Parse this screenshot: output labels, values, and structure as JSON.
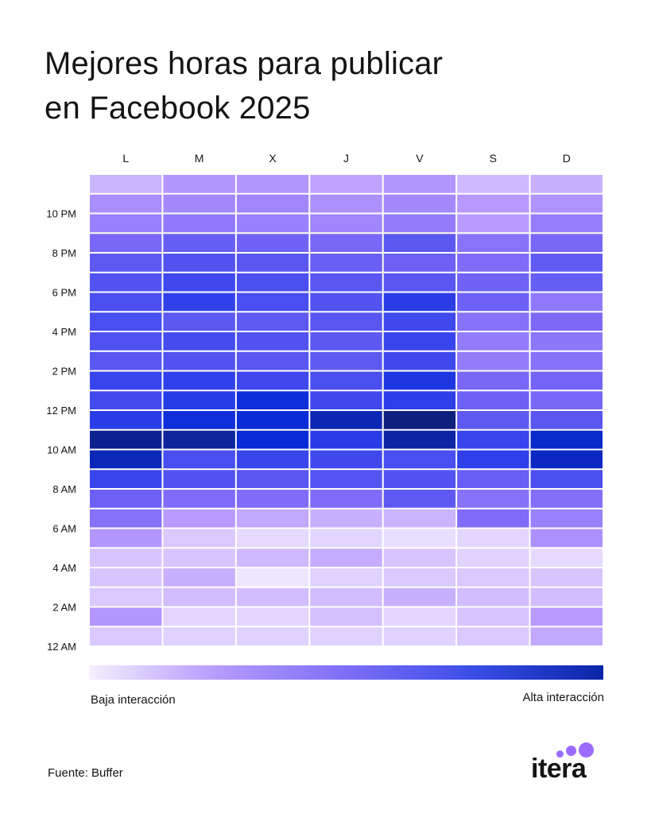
{
  "title": {
    "line1": "Mejores horas para publicar",
    "line2": "en Facebook 2025"
  },
  "chart_data": {
    "type": "heatmap",
    "title": "Mejores horas para publicar en Facebook 2025",
    "x_categories": [
      "L",
      "M",
      "X",
      "J",
      "V",
      "S",
      "D"
    ],
    "y_tick_labels": [
      "10 PM",
      "8 PM",
      "6 PM",
      "4 PM",
      "2 PM",
      "12 PM",
      "10 AM",
      "8 AM",
      "6 AM",
      "4 AM",
      "2 AM",
      "12 AM"
    ],
    "value_scale": "0 = baja interacción, 100 = alta interacción",
    "rows": [
      {
        "hour": "11 PM",
        "values": [
          14,
          22,
          22,
          18,
          22,
          13,
          15
        ]
      },
      {
        "hour": "10 PM",
        "values": [
          25,
          27,
          28,
          24,
          27,
          21,
          23
        ]
      },
      {
        "hour": "9 PM",
        "values": [
          30,
          33,
          30,
          28,
          32,
          20,
          31
        ]
      },
      {
        "hour": "8 PM",
        "values": [
          40,
          46,
          43,
          40,
          49,
          35,
          40
        ]
      },
      {
        "hour": "7 PM",
        "values": [
          48,
          52,
          50,
          45,
          44,
          38,
          47
        ]
      },
      {
        "hour": "6 PM",
        "values": [
          52,
          58,
          54,
          50,
          50,
          43,
          46
        ]
      },
      {
        "hour": "5 PM",
        "values": [
          54,
          63,
          55,
          52,
          66,
          44,
          33
        ]
      },
      {
        "hour": "4 PM",
        "values": [
          55,
          49,
          48,
          50,
          58,
          36,
          39
        ]
      },
      {
        "hour": "3 PM",
        "values": [
          53,
          56,
          52,
          49,
          60,
          32,
          34
        ]
      },
      {
        "hour": "2 PM",
        "values": [
          50,
          52,
          50,
          48,
          58,
          32,
          36
        ]
      },
      {
        "hour": "1 PM",
        "values": [
          60,
          63,
          58,
          54,
          71,
          40,
          42
        ]
      },
      {
        "hour": "12 PM",
        "values": [
          57,
          67,
          78,
          58,
          65,
          44,
          40
        ]
      },
      {
        "hour": "11 AM",
        "values": [
          66,
          78,
          80,
          87,
          98,
          48,
          50
        ]
      },
      {
        "hour": "10 AM",
        "values": [
          94,
          92,
          80,
          66,
          90,
          60,
          82
        ]
      },
      {
        "hour": "9 AM",
        "values": [
          86,
          55,
          60,
          58,
          55,
          64,
          84
        ]
      },
      {
        "hour": "8 AM",
        "values": [
          60,
          52,
          50,
          51,
          52,
          45,
          54
        ]
      },
      {
        "hour": "7 AM",
        "values": [
          44,
          38,
          38,
          38,
          48,
          36,
          37
        ]
      },
      {
        "hour": "6 AM",
        "values": [
          36,
          20,
          17,
          15,
          14,
          38,
          30
        ]
      },
      {
        "hour": "5 AM",
        "values": [
          22,
          9,
          5,
          6,
          4,
          6,
          24
        ]
      },
      {
        "hour": "4 AM",
        "values": [
          10,
          10,
          13,
          16,
          10,
          7,
          5
        ]
      },
      {
        "hour": "3 AM",
        "values": [
          10,
          15,
          2,
          7,
          9,
          9,
          10
        ]
      },
      {
        "hour": "2 AM",
        "values": [
          9,
          12,
          12,
          12,
          15,
          12,
          12
        ]
      },
      {
        "hour": "1 AM",
        "values": [
          22,
          6,
          6,
          11,
          6,
          10,
          20
        ]
      },
      {
        "hour": "12 AM",
        "values": [
          9,
          7,
          7,
          7,
          7,
          9,
          17
        ]
      }
    ],
    "color_scale": [
      "#f4effe",
      "#b99bff",
      "#7967f7",
      "#3845ec",
      "#0a2cd6",
      "#0f1e73"
    ],
    "legend": {
      "low": "Baja interacción",
      "high": "Alta interacción",
      "gradient": [
        "#f4effe",
        "#b49bff",
        "#7d6ef7",
        "#3a4de8",
        "#0a25a8"
      ]
    },
    "grid": true
  },
  "source": "Fuente: Buffer",
  "logo": {
    "text": "itera",
    "dot_color": "#9b6cff"
  }
}
